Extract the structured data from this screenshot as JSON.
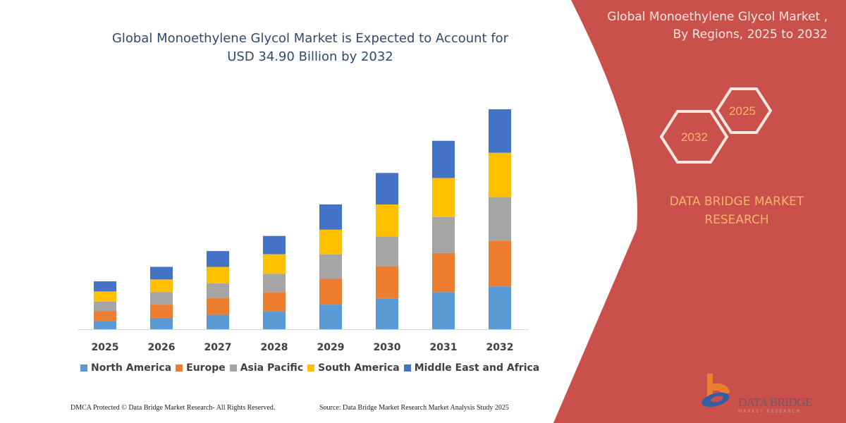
{
  "header": {
    "title_line1": "Global Monoethylene Glycol Market is Expected to Account for",
    "title_line2": "USD 34.90 Billion by 2032"
  },
  "side_panel": {
    "title_line1": "Global Monoethylene Glycol Market ,",
    "title_line2": "By Regions, 2025 to 2032",
    "hex_start": "2025",
    "hex_end": "2032",
    "brand_line1": "DATA BRIDGE MARKET",
    "brand_line2": "RESEARCH",
    "logo_text": "DATA BRIDGE",
    "logo_subtext": "MARKET RESEARCH",
    "panel_color": "#c9504b"
  },
  "footer": {
    "copyright": "DMCA Protected © Data Bridge Market Research- All Rights Reserved.",
    "source": "Source: Data Bridge Market Research Market Analysis Study 2025"
  },
  "chart_data": {
    "type": "bar",
    "stacked": true,
    "title": "Global Monoethylene Glycol Market is Expected to Account for USD 34.90 Billion by 2032",
    "xlabel": "",
    "ylabel": "",
    "grid": false,
    "y_axis_shown": false,
    "ylim": [
      0,
      34.9
    ],
    "legend_position": "bottom",
    "categories": [
      "2025",
      "2026",
      "2027",
      "2028",
      "2029",
      "2030",
      "2031",
      "2032"
    ],
    "series": [
      {
        "name": "North America",
        "color": "#5b9bd5",
        "values": [
          1.3,
          1.8,
          2.3,
          2.8,
          3.9,
          4.9,
          5.9,
          6.8
        ]
      },
      {
        "name": "Europe",
        "color": "#ed7d31",
        "values": [
          1.6,
          2.1,
          2.7,
          3.1,
          4.1,
          5.1,
          6.2,
          7.2
        ]
      },
      {
        "name": "Asia Pacific",
        "color": "#a5a5a5",
        "values": [
          1.5,
          2.0,
          2.3,
          2.9,
          3.9,
          4.7,
          5.7,
          7.0
        ]
      },
      {
        "name": "South America",
        "color": "#ffc000",
        "values": [
          1.6,
          2.0,
          2.6,
          3.1,
          3.9,
          5.1,
          6.2,
          7.0
        ]
      },
      {
        "name": "Middle East and Africa",
        "color": "#4472c4",
        "values": [
          1.6,
          2.0,
          2.5,
          2.9,
          4.0,
          5.0,
          5.9,
          6.9
        ]
      }
    ]
  }
}
